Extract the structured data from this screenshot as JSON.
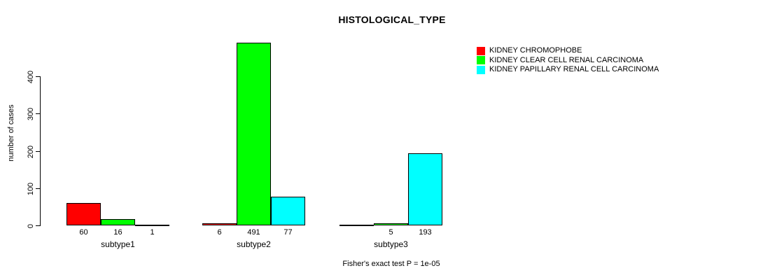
{
  "title": "HISTOLOGICAL_TYPE",
  "chart_data": {
    "type": "bar",
    "title": "HISTOLOGICAL_TYPE",
    "xlabel": "",
    "ylabel": "number of cases",
    "ylim": [
      0,
      400
    ],
    "yticks": [
      0,
      100,
      200,
      300,
      400
    ],
    "grid": false,
    "legend_position": "right",
    "categories": [
      "subtype1",
      "subtype2",
      "subtype3"
    ],
    "series": [
      {
        "name": "KIDNEY CHROMOPHOBE",
        "color": "#ff0000",
        "values": [
          60,
          6,
          0
        ],
        "bar_labels": [
          "60",
          "6",
          ""
        ]
      },
      {
        "name": "KIDNEY CLEAR CELL RENAL CARCINOMA",
        "color": "#00ff00",
        "values": [
          16,
          491,
          5
        ],
        "bar_labels": [
          "16",
          "491",
          "5"
        ]
      },
      {
        "name": "KIDNEY PAPILLARY RENAL CELL CARCINOMA",
        "color": "#00ffff",
        "values": [
          1,
          77,
          193
        ],
        "bar_labels": [
          "1",
          "77",
          "193"
        ]
      }
    ],
    "annotation": "Fisher's exact test P = 1e-05"
  }
}
